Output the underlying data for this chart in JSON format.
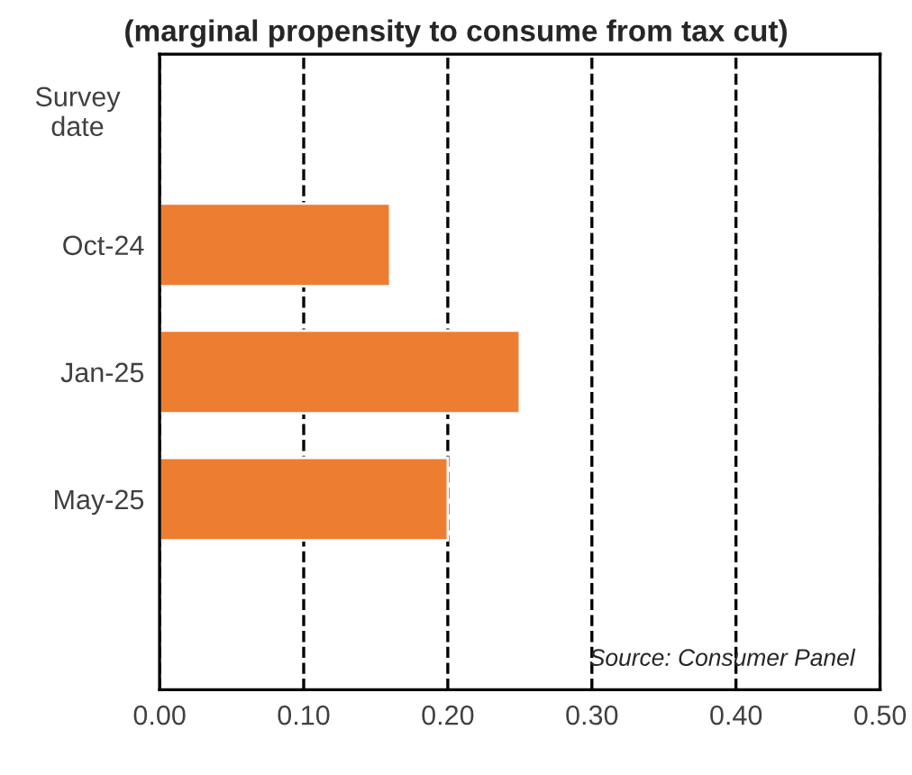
{
  "chart_data": {
    "type": "bar",
    "orientation": "horizontal",
    "title": "(marginal propensity to consume from tax cut)",
    "ylabel": "Survey date",
    "categories": [
      null,
      "Oct-24",
      "Jan-25",
      "May-25",
      null
    ],
    "values": [
      null,
      0.16,
      0.25,
      0.2,
      null
    ],
    "color": "#ed7d31",
    "xlim": [
      0,
      0.5
    ],
    "xticks": [
      {
        "value": 0,
        "label": "0.00"
      },
      {
        "value": 0.1,
        "label": "0.10"
      },
      {
        "value": 0.2,
        "label": "0.20"
      },
      {
        "value": 0.3,
        "label": "0.30"
      },
      {
        "value": 0.4,
        "label": "0.40"
      },
      {
        "value": 0.5,
        "label": "0.50"
      }
    ],
    "grid": "x",
    "line_style": "dashed",
    "annotations": [
      "Source: Consumer Panel"
    ]
  }
}
